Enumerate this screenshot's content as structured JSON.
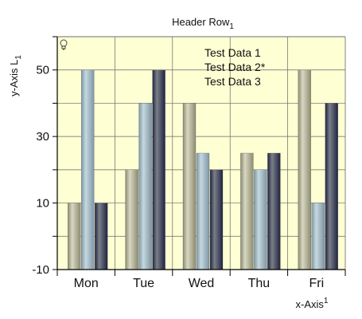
{
  "chart_data": {
    "type": "bar",
    "title": "Header Row",
    "title_subscript": "1",
    "xlabel": "x-Axis",
    "xlabel_superscript": "1",
    "ylabel": "y-Axis L",
    "ylabel_subscript": "1",
    "categories": [
      "Mon",
      "Tue",
      "Wed",
      "Thu",
      "Fri"
    ],
    "y_ticks": [
      "-10",
      "10",
      "30",
      "50"
    ],
    "ylim": [
      -10,
      60
    ],
    "grid": true,
    "legend_position": "top-right",
    "series": [
      {
        "name": "Test Data 1",
        "values": [
          10,
          20,
          40,
          25,
          50
        ]
      },
      {
        "name": "Test Data 2*",
        "values": [
          50,
          40,
          25,
          20,
          10
        ]
      },
      {
        "name": "Test Data 3",
        "values": [
          10,
          50,
          20,
          25,
          40
        ]
      }
    ],
    "colors": {
      "plot_background": "#FFFFD4",
      "grid": "#666666",
      "series_light": [
        "#D8D8C2",
        "#C6D8E0",
        "#7A7F88"
      ],
      "series_dark": [
        "#8C8C72",
        "#7E96A4",
        "#1F2340"
      ]
    }
  }
}
